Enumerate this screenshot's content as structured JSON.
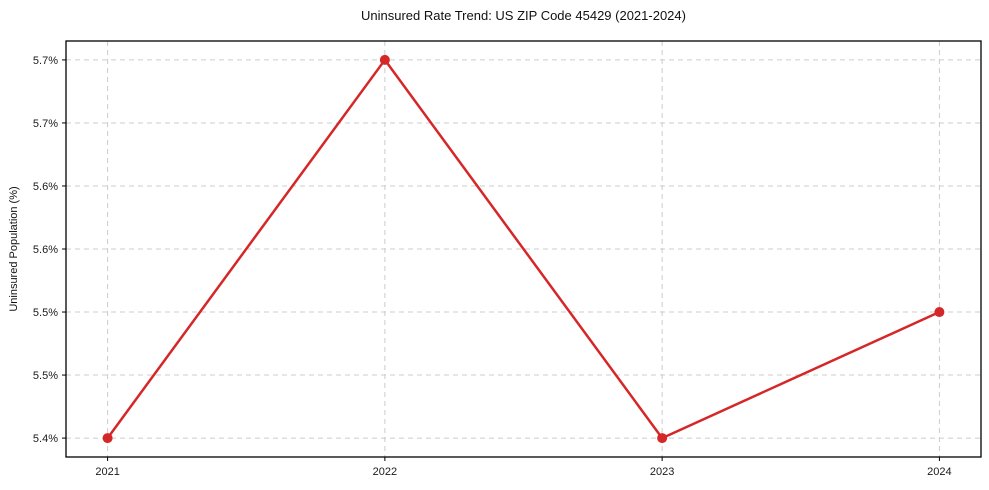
{
  "chart_data": {
    "type": "line",
    "title": "Uninsured Rate Trend: US ZIP Code 45429 (2021-2024)",
    "xlabel": "",
    "ylabel": "Uninsured Population (%)",
    "x": [
      2021,
      2022,
      2023,
      2024
    ],
    "series": [
      {
        "name": "uninsured-rate",
        "values": [
          5.4,
          5.7,
          5.4,
          5.5
        ],
        "color": "#d62728",
        "marker": "circle"
      }
    ],
    "xlim": [
      2020.85,
      2024.15
    ],
    "ylim": [
      5.385,
      5.715
    ],
    "xticks": [
      {
        "value": 2021,
        "label": "2021"
      },
      {
        "value": 2022,
        "label": "2022"
      },
      {
        "value": 2023,
        "label": "2023"
      },
      {
        "value": 2024,
        "label": "2024"
      }
    ],
    "yticks": [
      {
        "value": 5.4,
        "label": "5.4%"
      },
      {
        "value": 5.45,
        "label": "5.5%"
      },
      {
        "value": 5.5,
        "label": "5.5%"
      },
      {
        "value": 5.55,
        "label": "5.6%"
      },
      {
        "value": 5.6,
        "label": "5.6%"
      },
      {
        "value": 5.65,
        "label": "5.7%"
      },
      {
        "value": 5.7,
        "label": "5.7%"
      }
    ],
    "grid": true,
    "grid_color": "#cccccc",
    "grid_dash": "5,4",
    "legend": false,
    "background": "#ffffff",
    "axis_color": "#000000",
    "tick_label_color": "#1a1a1a"
  }
}
